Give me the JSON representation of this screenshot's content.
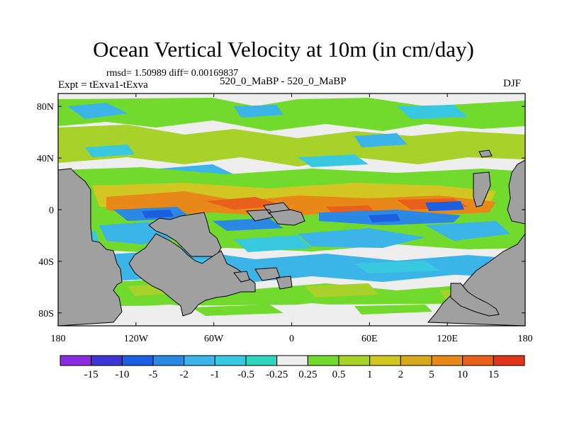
{
  "figure": {
    "title": "Ocean Vertical Velocity at 10m (in cm/day)",
    "stats": "rmsd= 1.50989 diff= 0.00169837",
    "experiment": "Expt = tExva1-tExva",
    "case_label": "520_0_MaBP - 520_0_MaBP",
    "season": "DJF"
  },
  "axes": {
    "x_ticks": [
      {
        "lon": -180,
        "label": "180"
      },
      {
        "lon": -120,
        "label": "120W"
      },
      {
        "lon": -60,
        "label": "60W"
      },
      {
        "lon": 0,
        "label": "0"
      },
      {
        "lon": 60,
        "label": "60E"
      },
      {
        "lon": 120,
        "label": "120E"
      },
      {
        "lon": 180,
        "label": "180"
      }
    ],
    "y_ticks": [
      {
        "lat": 80,
        "label": "80N"
      },
      {
        "lat": 40,
        "label": "40N"
      },
      {
        "lat": 0,
        "label": "0"
      },
      {
        "lat": -40,
        "label": "40S"
      },
      {
        "lat": -80,
        "label": "80S"
      }
    ],
    "lon_range": [
      -180,
      180
    ],
    "lat_range": [
      -90,
      90
    ]
  },
  "colorbar": {
    "colors": [
      "#8a2be2",
      "#3d35d6",
      "#1c5ee0",
      "#2b89e3",
      "#3bb4e8",
      "#38c9e0",
      "#2fd6bd",
      "#eeeeee",
      "#72d92d",
      "#a8d22a",
      "#d2c622",
      "#d8a81c",
      "#e88818",
      "#e8601a",
      "#e03518"
    ],
    "labels": [
      "-15",
      "-10",
      "-5",
      "-2",
      "-1",
      "-0.5",
      "-0.25",
      "0.25",
      "0.5",
      "1",
      "2",
      "5",
      "10",
      "15"
    ]
  },
  "chart_data": {
    "type": "heatmap",
    "title": "Ocean Vertical Velocity at 10m (in cm/day)",
    "variable": "Ocean Vertical Velocity at 10m",
    "units": "cm/day",
    "season": "DJF",
    "levels": [
      -15,
      -10,
      -5,
      -2,
      -1,
      -0.5,
      -0.25,
      0.25,
      0.5,
      1,
      2,
      5,
      10,
      15
    ],
    "xlim": [
      -180,
      180
    ],
    "ylim": [
      -90,
      90
    ],
    "rmsd": 1.50989,
    "diff": 0.00169837
  }
}
